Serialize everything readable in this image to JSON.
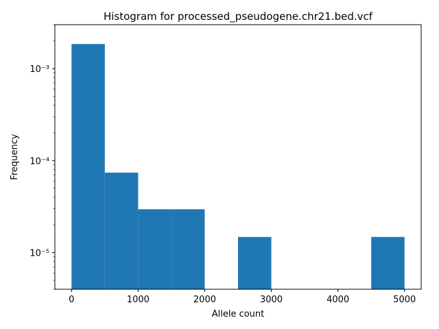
{
  "chart_data": {
    "type": "bar",
    "title": "Histogram for processed_pseudogene.chr21.bed.vcf",
    "xlabel": "Allele count",
    "ylabel": "Frequency",
    "yscale": "log",
    "xlim": [
      -250,
      5250
    ],
    "ylim": [
      4e-06,
      0.003
    ],
    "bin_edges": [
      0,
      500,
      1000,
      1500,
      2000,
      2500,
      3000,
      3500,
      4000,
      4500,
      5000
    ],
    "values": [
      0.00185,
      7.4e-05,
      2.96e-05,
      2.96e-05,
      0,
      1.48e-05,
      0,
      0,
      0,
      1.48e-05
    ],
    "x_ticks": [
      0,
      1000,
      2000,
      3000,
      4000,
      5000
    ],
    "x_tick_labels": [
      "0",
      "1000",
      "2000",
      "3000",
      "4000",
      "5000"
    ],
    "y_major_ticks": [
      1e-05,
      0.0001,
      0.001
    ],
    "y_tick_labels": [
      "10⁻⁵",
      "10⁻⁴",
      "10⁻³"
    ],
    "bar_color": "#1f77b4",
    "grid": false,
    "legend": "none"
  }
}
